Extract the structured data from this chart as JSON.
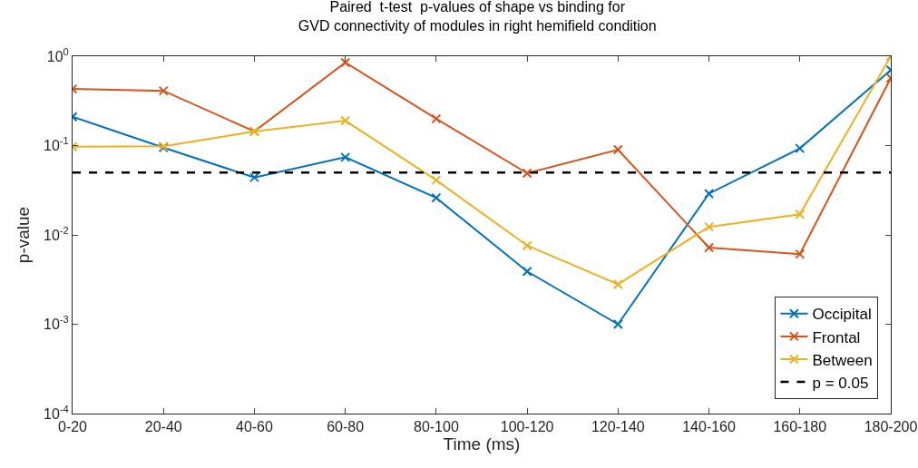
{
  "chart_data": {
    "type": "line",
    "title": "Paired  t-test  p-values of shape vs binding for\nGVD connectivity of modules in right hemifield condition",
    "xlabel": "Time (ms)",
    "ylabel": "p-value",
    "categories": [
      "0-20",
      "20-40",
      "40-60",
      "60-80",
      "80-100",
      "100-120",
      "120-140",
      "140-160",
      "160-180",
      "180-200"
    ],
    "series": [
      {
        "name": "Occipital",
        "color": "#0072bd",
        "values": [
          0.21,
          0.095,
          0.044,
          0.074,
          0.026,
          0.0039,
          0.001,
          0.029,
          0.093,
          0.7
        ]
      },
      {
        "name": "Frontal",
        "color": "#d95319",
        "values": [
          0.43,
          0.41,
          0.144,
          0.85,
          0.2,
          0.049,
          0.09,
          0.0072,
          0.0061,
          0.57
        ]
      },
      {
        "name": "Between",
        "color": "#edb120",
        "values": [
          0.097,
          0.098,
          0.144,
          0.19,
          0.041,
          0.0076,
          0.0028,
          0.0123,
          0.017,
          1.0
        ]
      }
    ],
    "ref_lines": [
      {
        "axis": "y",
        "value": 0.05,
        "label": "p = 0.05",
        "color": "#000000",
        "line_style": "dashed"
      }
    ],
    "log": "y",
    "ylim": [
      0.0001,
      1
    ],
    "yticks": [
      {
        "value": 0.0001,
        "label": "10$^{-4}$"
      },
      {
        "value": 0.001,
        "label": "10$^{-3}$"
      },
      {
        "value": 0.01,
        "label": "10$^{-2}$"
      },
      {
        "value": 0.1,
        "label": "10$^{-1}$"
      },
      {
        "value": 1,
        "label": "10$^{0}$"
      }
    ],
    "grid": false,
    "legend": "bottom right",
    "marker": "cross",
    "line_style": "solid"
  }
}
